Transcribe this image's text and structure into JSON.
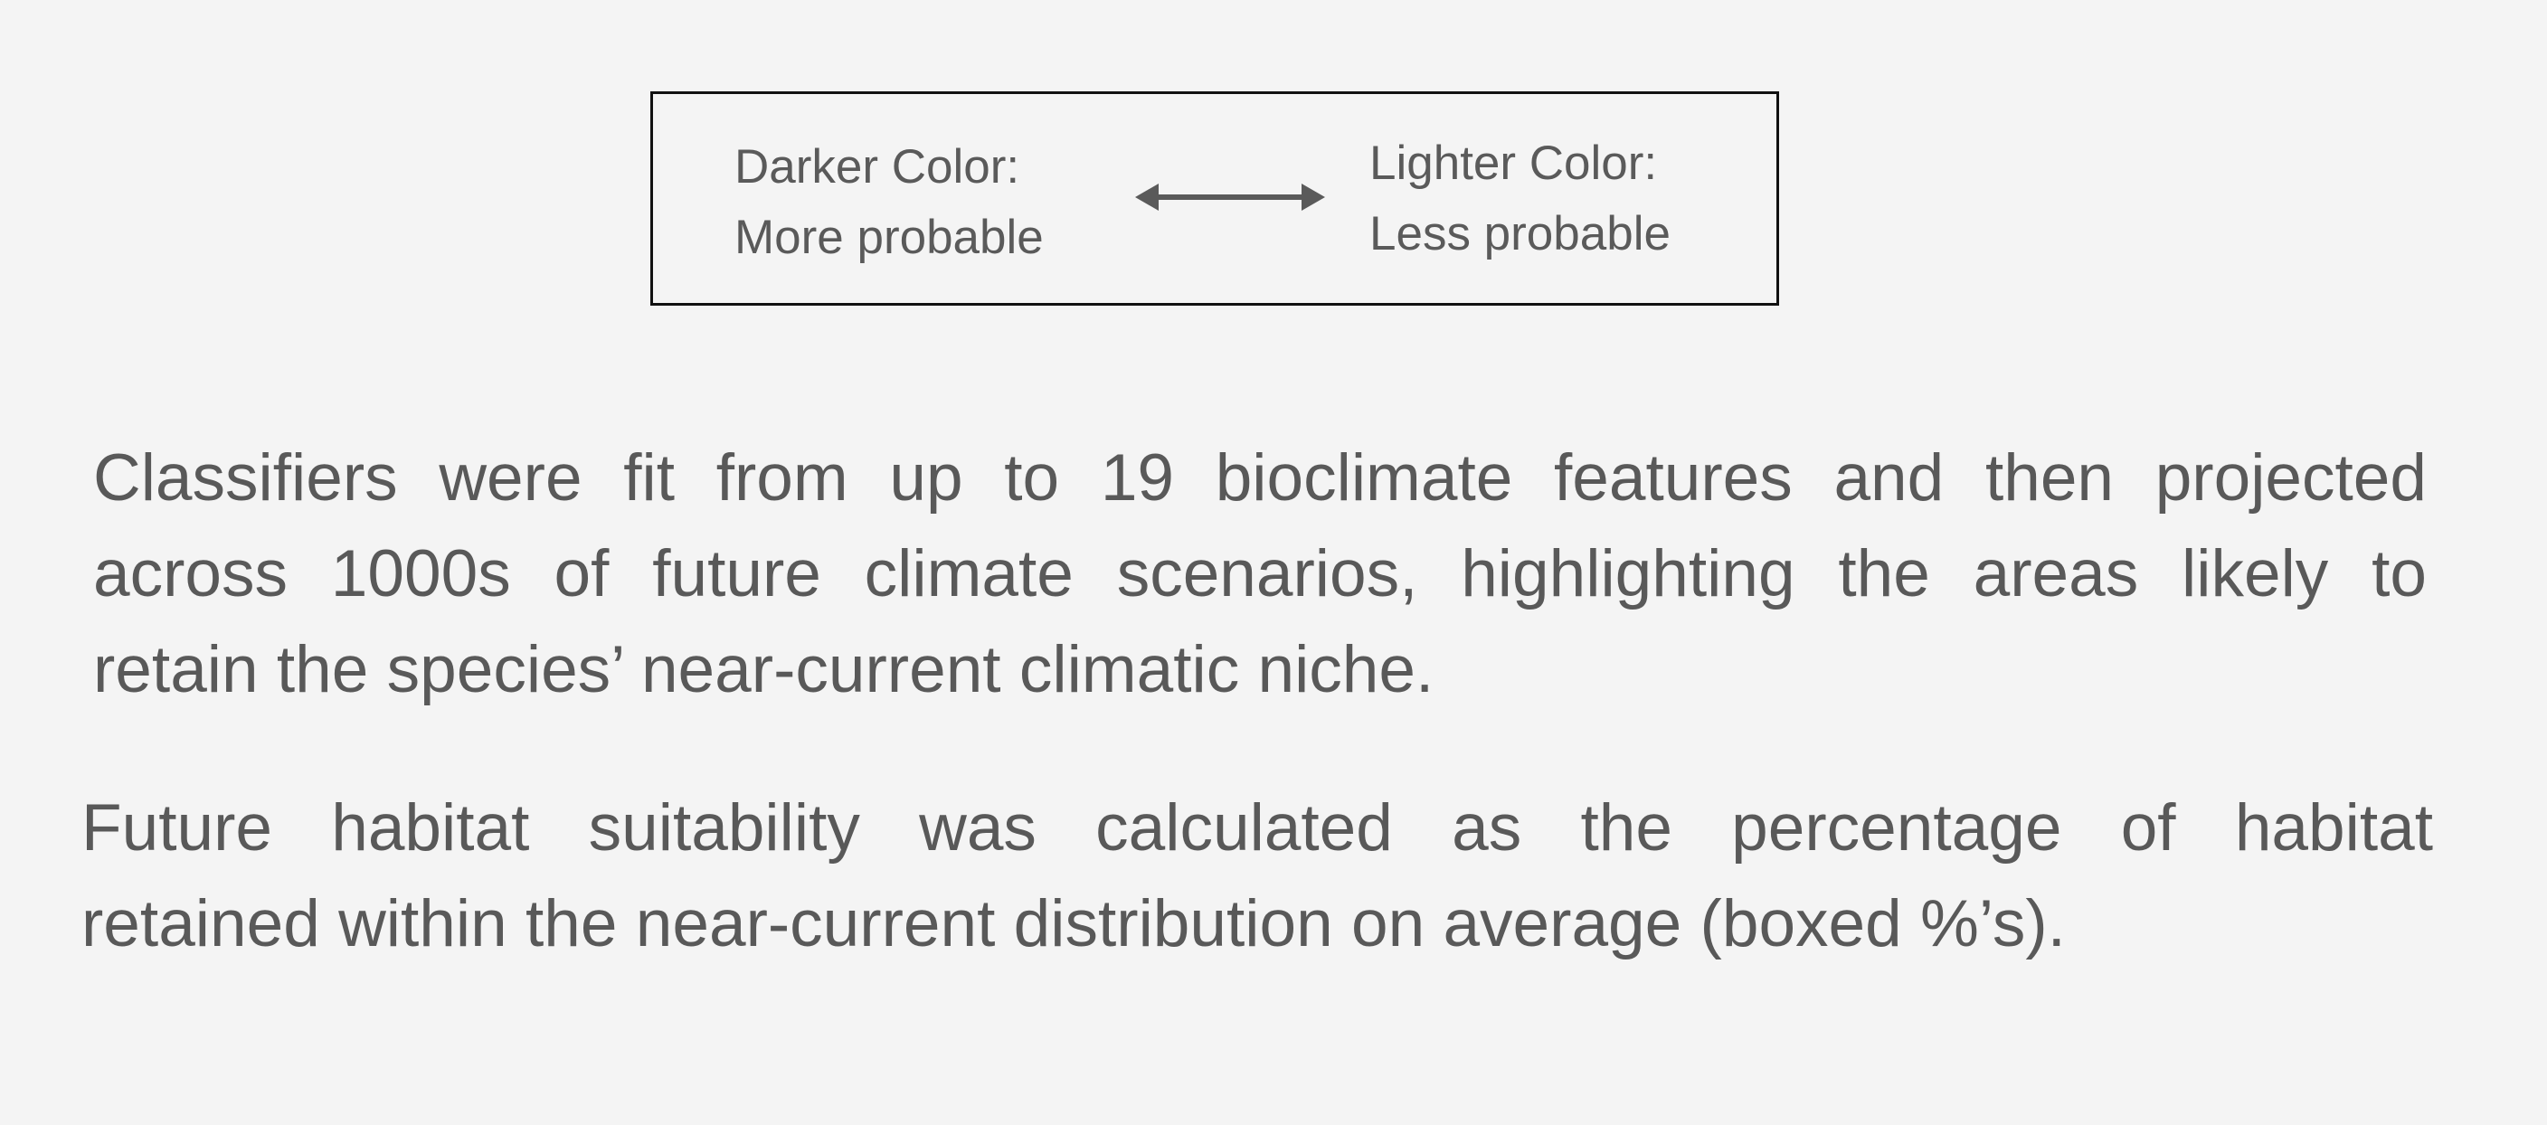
{
  "legend": {
    "left_line1": "Darker Color:",
    "left_line2": "More probable",
    "right_line1": "Lighter Color:",
    "right_line2": "Less probable",
    "arrow_icon": "double-arrow-icon"
  },
  "paragraph1": {
    "line1": "Classifiers were fit from up to 19 bioclimate features and then projected",
    "line2": "across 1000s of future climate scenarios, highlighting the areas likely to",
    "line3": "retain the species’ near-current climatic niche."
  },
  "paragraph2": {
    "line1": "Future habitat suitability was calculated as the percentage of habitat",
    "line2": "retained within the near-current distribution on average (boxed %’s)."
  },
  "colors": {
    "background": "#f4f4f4",
    "text": "#595959",
    "border": "#111111"
  }
}
